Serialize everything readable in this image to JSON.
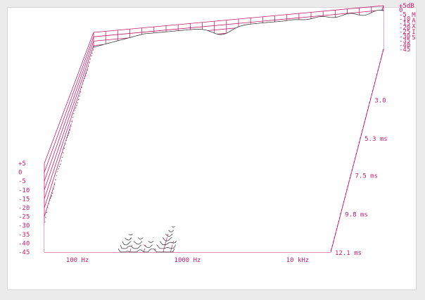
{
  "colors": {
    "grid": "#c21e6a",
    "trace": "#2b2b2b",
    "background": "#ffffff",
    "label": "#c21e6a"
  },
  "chart_data": {
    "type": "waterfall",
    "x_axis": {
      "scale": "log",
      "range_hz": [
        50,
        20000
      ],
      "ticks": [
        "100 Hz",
        "1000 Hz",
        "10 kHz"
      ],
      "tick_values": [
        100,
        1000,
        10000
      ]
    },
    "time_axis": {
      "ticks": [
        "3.0",
        "5.3 ms",
        "7.5 ms",
        "9.8 ms",
        "12.1 ms"
      ],
      "tick_values": [
        3.0,
        5.3,
        7.5,
        9.8,
        12.1
      ],
      "range_ms": [
        0,
        12.1
      ]
    },
    "left_axis": {
      "ticks": [
        "+5",
        "0",
        "-5",
        "-10",
        "-15",
        "-20",
        "-25",
        "-30",
        "-35",
        "-40",
        "-45"
      ],
      "range_db": [
        -45,
        5
      ]
    },
    "right_axis": {
      "ticks": [
        "+5dB",
        "0",
        "-5",
        "-10",
        "-15",
        "-20",
        "-25",
        "-30",
        "-35",
        "-40",
        "-45"
      ],
      "range_db": [
        -45,
        5
      ]
    },
    "right_vertical_label": "MAXIS",
    "grid": true,
    "slices": 52
  }
}
